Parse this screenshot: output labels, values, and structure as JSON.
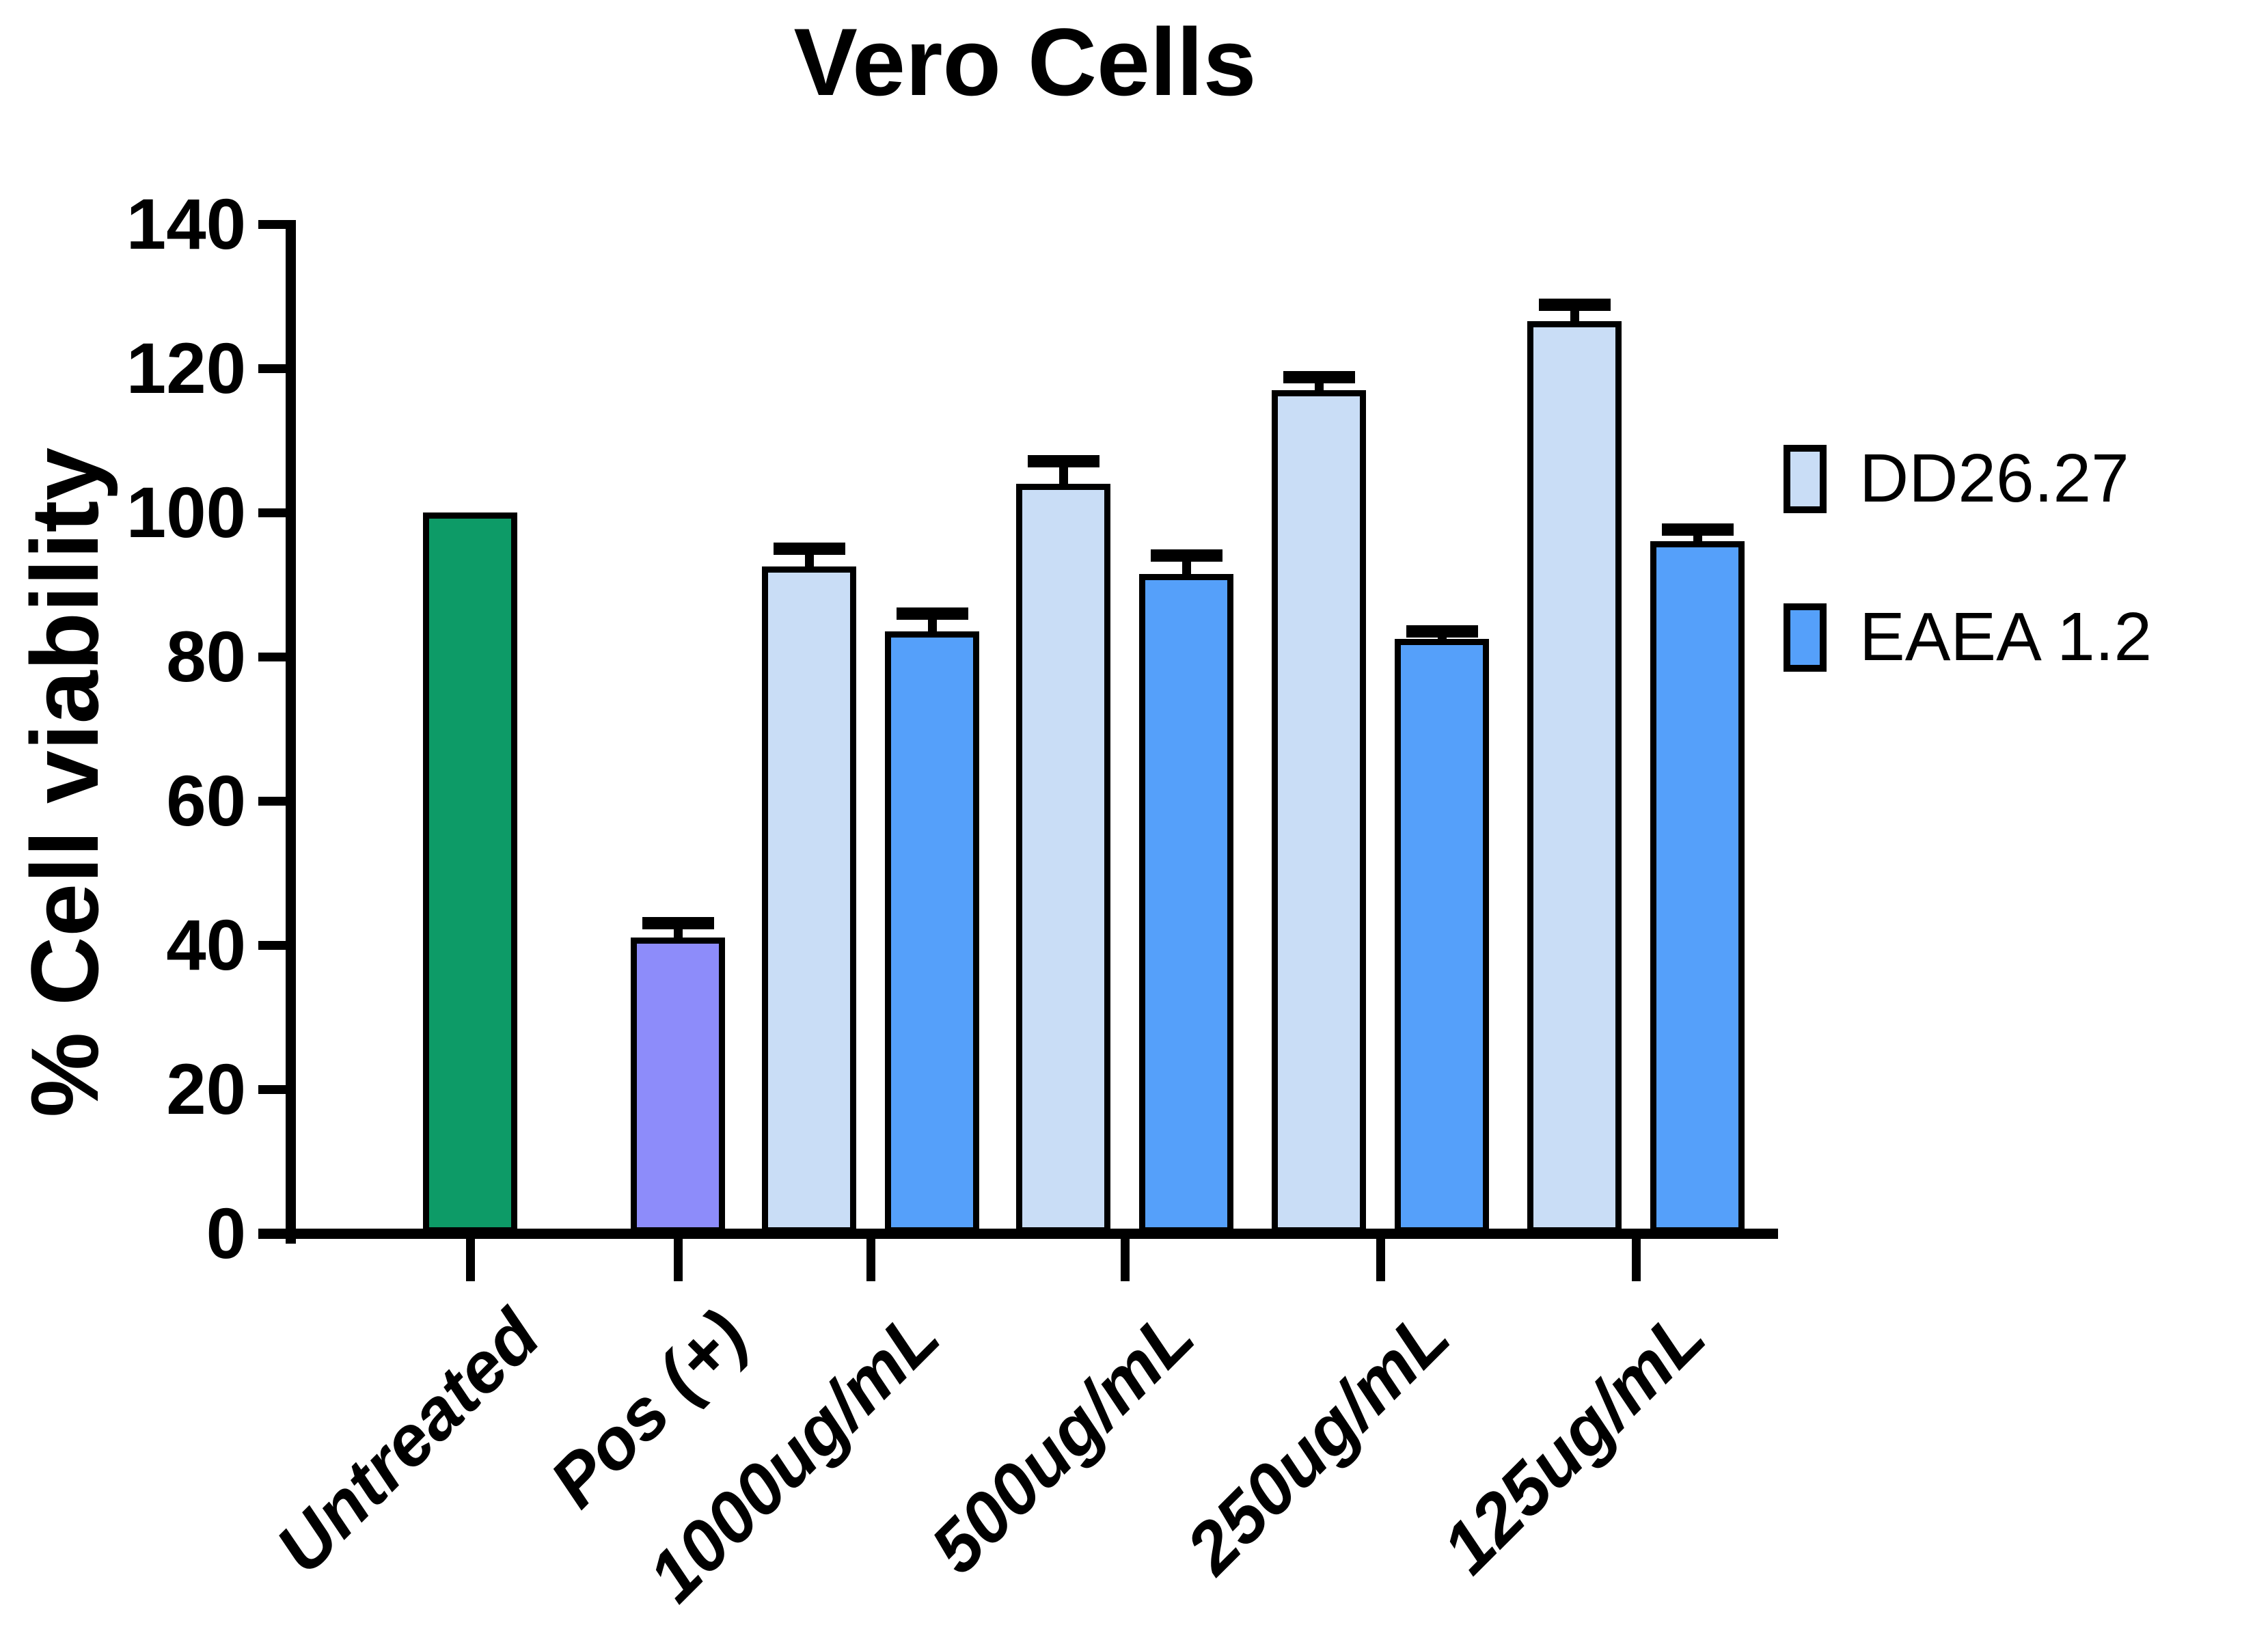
{
  "title": "Vero Cells",
  "legend": {
    "items": [
      {
        "label": "DD26.27",
        "color": "#C9DDF6"
      },
      {
        "label": "EAEA 1.2",
        "color": "#55A0FA"
      }
    ]
  },
  "chart_data": {
    "type": "bar",
    "title": "Vero Cells",
    "xlabel": "",
    "ylabel": "% Cell viability",
    "ylim": [
      0,
      140
    ],
    "yticks": [
      0,
      20,
      40,
      60,
      80,
      100,
      120,
      140
    ],
    "grid": false,
    "legend_position": "right",
    "categories": [
      "Untreated",
      "Pos (+)",
      "1000ug/mL",
      "500ug/mL",
      "250ug/mL",
      "125ug/mL"
    ],
    "bars": [
      {
        "category": "Untreated",
        "series": null,
        "value": 100,
        "error": 0,
        "color": "#0D9B67"
      },
      {
        "category": "Pos (+)",
        "series": null,
        "value": 41,
        "error": 2.0,
        "color": "#8D8CFA"
      },
      {
        "category": "1000ug/mL",
        "series": "DD26.27",
        "value": 92.5,
        "error": 2.5,
        "color": "#C9DDF6"
      },
      {
        "category": "1000ug/mL",
        "series": "EAEA 1.2",
        "value": 83.5,
        "error": 2.5,
        "color": "#55A0FA"
      },
      {
        "category": "500ug/mL",
        "series": "DD26.27",
        "value": 104,
        "error": 3.1,
        "color": "#C9DDF6"
      },
      {
        "category": "500ug/mL",
        "series": "EAEA 1.2",
        "value": 91.5,
        "error": 2.5,
        "color": "#55A0FA"
      },
      {
        "category": "250ug/mL",
        "series": "DD26.27",
        "value": 117,
        "error": 1.8,
        "color": "#C9DDF6"
      },
      {
        "category": "250ug/mL",
        "series": "EAEA 1.2",
        "value": 82.5,
        "error": 1.0,
        "color": "#55A0FA"
      },
      {
        "category": "125ug/mL",
        "series": "DD26.27",
        "value": 126.5,
        "error": 2.3,
        "color": "#C9DDF6"
      },
      {
        "category": "125ug/mL",
        "series": "EAEA 1.2",
        "value": 96,
        "error": 1.6,
        "color": "#55A0FA"
      }
    ],
    "series": [
      {
        "name": "DD26.27",
        "color": "#C9DDF6",
        "values": [
          null,
          null,
          92.5,
          104,
          117,
          126.5
        ],
        "errors": [
          null,
          null,
          2.5,
          3.1,
          1.8,
          2.3
        ]
      },
      {
        "name": "EAEA 1.2",
        "color": "#55A0FA",
        "values": [
          null,
          null,
          83.5,
          91.5,
          82.5,
          96
        ],
        "errors": [
          null,
          null,
          2.5,
          2.5,
          1.0,
          1.6
        ]
      }
    ]
  }
}
